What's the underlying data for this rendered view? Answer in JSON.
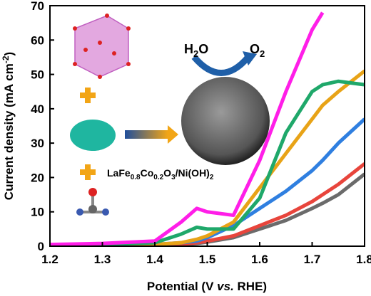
{
  "chart_data": {
    "type": "line",
    "x_label_parts": [
      "Potential (V ",
      "vs.",
      " RHE)"
    ],
    "y_label_parts": [
      "Current density (mA cm",
      "-2",
      ")"
    ],
    "annotations": {
      "reactant_parts": [
        "H",
        "2",
        "O"
      ],
      "reactant_color": "#22b04b",
      "product_parts": [
        "O",
        "2"
      ],
      "catalyst_parts": [
        "LaFe",
        "0.8",
        "Co",
        "0.2",
        "O",
        "3",
        "/Ni(OH)",
        "2"
      ]
    },
    "x": [
      1.2,
      1.3,
      1.4,
      1.45,
      1.48,
      1.5,
      1.55,
      1.6,
      1.65,
      1.7,
      1.72,
      1.75,
      1.8
    ],
    "series": [
      {
        "color": "#6b6b6b",
        "values": [
          0,
          0.1,
          0.3,
          0.5,
          0.8,
          1.2,
          2.5,
          5,
          7.5,
          11,
          12.5,
          15,
          21
        ]
      },
      {
        "color": "#e8453c",
        "values": [
          0,
          0.1,
          0.3,
          0.6,
          1,
          1.5,
          3,
          6,
          9,
          13,
          15,
          18,
          24
        ]
      },
      {
        "color": "#2f7fe0",
        "values": [
          0,
          0.2,
          0.5,
          1,
          1.5,
          2.5,
          6,
          11,
          16,
          22,
          25,
          30,
          37
        ]
      },
      {
        "color": "#e8a317",
        "values": [
          0,
          0.2,
          0.5,
          1,
          2,
          3,
          7,
          17,
          27,
          37,
          41,
          45,
          51
        ]
      },
      {
        "color": "#1fa86a",
        "values": [
          0.3,
          0.5,
          1,
          3.5,
          5.5,
          5,
          5,
          14,
          33,
          45,
          47,
          48,
          47
        ]
      },
      {
        "color": "#ff1ee8",
        "values": [
          0.5,
          0.8,
          1.5,
          7,
          11,
          10,
          9,
          25,
          45,
          63,
          68,
          null,
          null
        ]
      }
    ],
    "xlim": [
      1.2,
      1.8
    ],
    "xticks": [
      1.2,
      1.3,
      1.4,
      1.5,
      1.6,
      1.7,
      1.8
    ],
    "ylim": [
      0,
      70
    ],
    "yticks": [
      0,
      10,
      20,
      30,
      40,
      50,
      60,
      70
    ]
  }
}
